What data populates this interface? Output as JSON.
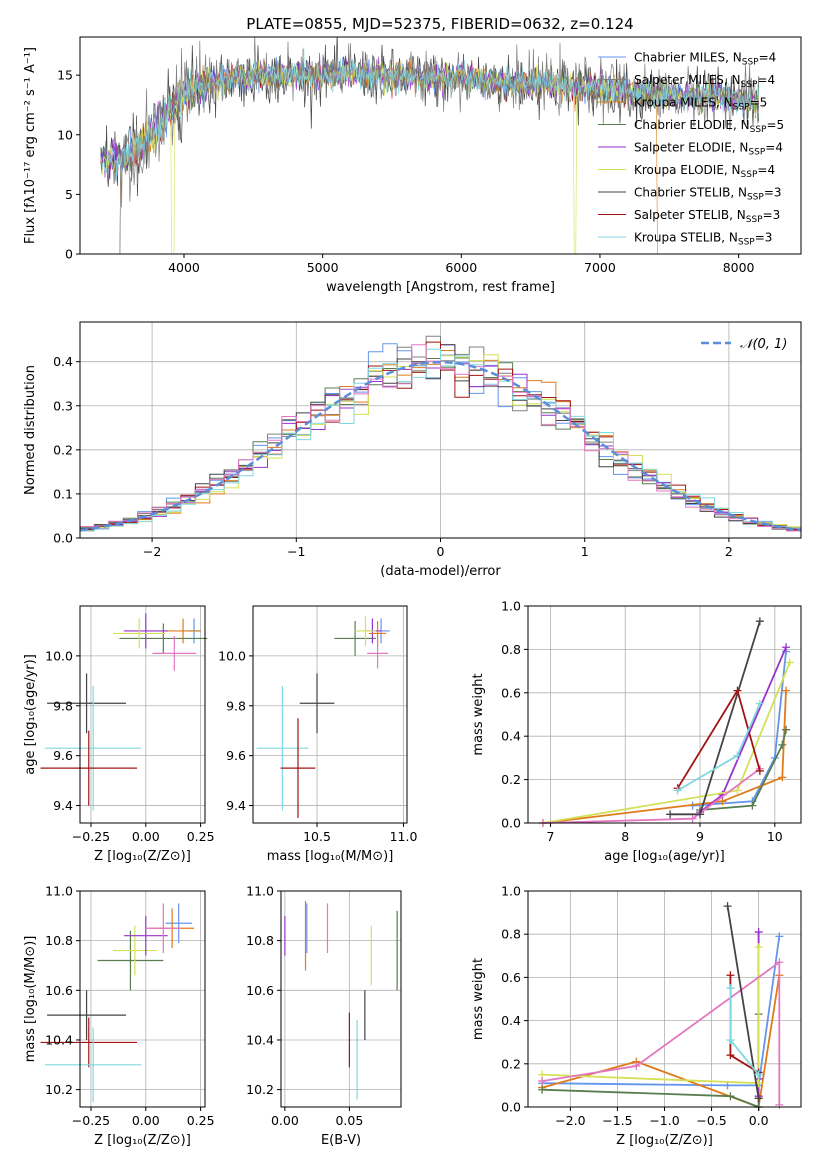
{
  "figure_title": "PLATE=0855, MJD=52375, FIBERID=0632, z=0.124",
  "palette": [
    "#1f77b4",
    "#ff7f0e",
    "#2ca02c",
    "#d62728",
    "#9467bd",
    "#8c564b",
    "#e377c2",
    "#7f7f7f",
    "#bcbd22",
    "#17becf"
  ],
  "legend_spectrum": [
    {
      "text": "Chabrier MILES, N",
      "sub": "SSP",
      "tail": "=4",
      "color": "#6495ed"
    },
    {
      "text": "Salpeter MILES, N",
      "sub": "SSP",
      "tail": "=4",
      "color": "#808080"
    },
    {
      "text": "Kroupa MILES, N",
      "sub": "SSP",
      "tail": "=5",
      "color": "#e07b1a"
    },
    {
      "text": "Chabrier ELODIE, N",
      "sub": "SSP",
      "tail": "=5",
      "color": "#5a7d50"
    },
    {
      "text": "Salpeter ELODIE, N",
      "sub": "SSP",
      "tail": "=4",
      "color": "#9932cc"
    },
    {
      "text": "Kroupa ELODIE, N",
      "sub": "SSP",
      "tail": "=4",
      "color": "#d4e157"
    },
    {
      "text": "Chabrier STELIB, N",
      "sub": "SSP",
      "tail": "=3",
      "color": "#444444"
    },
    {
      "text": "Salpeter STELIB, N",
      "sub": "SSP",
      "tail": "=3",
      "color": "#a01515"
    },
    {
      "text": "Kroupa STELIB, N",
      "sub": "SSP",
      "tail": "=3",
      "color": "#80d8e0"
    }
  ],
  "chart_data": [
    {
      "id": "spectrum",
      "type": "line",
      "title": "PLATE=0855, MJD=52375, FIBERID=0632, z=0.124",
      "xlabel": "wavelength [Angstrom, rest frame]",
      "ylabel": "Flux [fλ10⁻¹⁷ erg cm⁻² s⁻¹ A⁻¹]",
      "xlim": [
        3250,
        8450
      ],
      "ylim": [
        0,
        18.2
      ],
      "xticks": [
        4000,
        5000,
        6000,
        7000,
        8000
      ],
      "yticks": [
        0,
        5,
        10,
        15
      ],
      "grid": false,
      "legend": "top-right",
      "continuum": {
        "x": [
          3400,
          3600,
          3800,
          4000,
          4200,
          4400,
          4600,
          4800,
          5000,
          5200,
          5400,
          5600,
          5800,
          6000,
          6200,
          6400,
          6600,
          6800,
          7000,
          7200,
          7400,
          7600,
          7800,
          8000,
          8150
        ],
        "y": [
          7.8,
          8.2,
          10.5,
          13.5,
          14.5,
          14.8,
          14.9,
          15.0,
          14.9,
          15.2,
          15.0,
          14.9,
          14.6,
          14.9,
          14.5,
          14.3,
          14.4,
          14.0,
          13.9,
          13.6,
          13.4,
          13.2,
          13.2,
          12.9,
          12.8
        ]
      },
      "drops": [
        {
          "series": "Kroupa MILES",
          "x": 3530
        },
        {
          "series": "Kroupa MILES",
          "x": 7420
        },
        {
          "series": "Kroupa ELODIE",
          "x": 3920
        },
        {
          "series": "Kroupa ELODIE",
          "x": 6820
        },
        {
          "series": "Salpeter MILES",
          "x": 3530
        }
      ]
    },
    {
      "id": "residuals",
      "type": "histogram",
      "xlabel": "(data-model)/error",
      "ylabel": "Normed distribution",
      "xlim": [
        -2.5,
        2.5
      ],
      "ylim": [
        0,
        0.49
      ],
      "xticks": [
        -2,
        -1,
        0,
        1,
        2
      ],
      "yticks": [
        0.0,
        0.1,
        0.2,
        0.3,
        0.4
      ],
      "grid": true,
      "legend": "top-right",
      "reference_label": "𝒩(0, 1)",
      "reference_color": "#5b8dd9",
      "bin_width": 0.1
    },
    {
      "id": "age_vs_Z",
      "type": "scatter",
      "xlabel": "Z [log₁₀(Z/Z⊙)]",
      "ylabel": "age  [log₁₀(age/yr)]",
      "xlim": [
        -0.3,
        0.27
      ],
      "ylim": [
        9.33,
        10.2
      ],
      "xticks": [
        -0.25,
        0.0,
        0.25
      ],
      "yticks": [
        9.4,
        9.6,
        9.8,
        10.0
      ],
      "grid": true,
      "points": [
        {
          "x": -0.27,
          "y": 9.81,
          "xerr": 0.18,
          "yerr": 0.12,
          "color": "#444444"
        },
        {
          "x": -0.24,
          "y": 9.63,
          "xerr": 0.22,
          "yerr": 0.25,
          "color": "#80d8e0"
        },
        {
          "x": -0.26,
          "y": 9.55,
          "xerr": 0.22,
          "yerr": 0.15,
          "color": "#a01515"
        },
        {
          "x": 0.22,
          "y": 10.1,
          "xerr": 0.03,
          "yerr": 0.05,
          "color": "#6495ed"
        },
        {
          "x": 0.17,
          "y": 10.1,
          "xerr": 0.08,
          "yerr": 0.05,
          "color": "#e07b1a"
        },
        {
          "x": 0.08,
          "y": 10.07,
          "xerr": 0.2,
          "yerr": 0.06,
          "color": "#5a7d50"
        },
        {
          "x": 0.0,
          "y": 10.1,
          "xerr": 0.1,
          "yerr": 0.07,
          "color": "#9932cc"
        },
        {
          "x": -0.03,
          "y": 10.09,
          "xerr": 0.12,
          "yerr": 0.06,
          "color": "#d4e157"
        },
        {
          "x": 0.13,
          "y": 10.01,
          "xerr": 0.1,
          "yerr": 0.07,
          "color": "#e377c2"
        }
      ]
    },
    {
      "id": "age_vs_mass",
      "type": "scatter",
      "xlabel": "mass [log₁₀(M/M⊙)]",
      "ylabel": "",
      "xlim": [
        10.13,
        11.02
      ],
      "ylim": [
        9.33,
        10.2
      ],
      "xticks": [
        10.5,
        11.0
      ],
      "yticks": [
        9.4,
        9.6,
        9.8,
        10.0
      ],
      "grid": true,
      "points": [
        {
          "x": 10.3,
          "y": 9.63,
          "xerr": 0.15,
          "yerr": 0.25,
          "color": "#80d8e0"
        },
        {
          "x": 10.39,
          "y": 9.55,
          "xerr": 0.1,
          "yerr": 0.2,
          "color": "#a01515"
        },
        {
          "x": 10.5,
          "y": 9.81,
          "xerr": 0.1,
          "yerr": 0.12,
          "color": "#444444"
        },
        {
          "x": 10.72,
          "y": 10.07,
          "xerr": 0.12,
          "yerr": 0.07,
          "color": "#5a7d50"
        },
        {
          "x": 10.87,
          "y": 10.1,
          "xerr": 0.05,
          "yerr": 0.05,
          "color": "#6495ed"
        },
        {
          "x": 10.82,
          "y": 10.1,
          "xerr": 0.05,
          "yerr": 0.05,
          "color": "#9932cc"
        },
        {
          "x": 10.85,
          "y": 10.09,
          "xerr": 0.05,
          "yerr": 0.05,
          "color": "#e07b1a"
        },
        {
          "x": 10.85,
          "y": 10.01,
          "xerr": 0.06,
          "yerr": 0.06,
          "color": "#e377c2"
        },
        {
          "x": 10.78,
          "y": 10.1,
          "xerr": 0.06,
          "yerr": 0.06,
          "color": "#d4e157"
        }
      ]
    },
    {
      "id": "weights_vs_age",
      "type": "line",
      "xlabel": "age  [log₁₀(age/yr)]",
      "ylabel": "mass weight",
      "xlim": [
        6.7,
        10.35
      ],
      "ylim": [
        0,
        1.0
      ],
      "xticks": [
        7,
        8,
        9,
        10
      ],
      "yticks": [
        0.0,
        0.2,
        0.4,
        0.6,
        0.8,
        1.0
      ],
      "grid": true,
      "series": [
        {
          "color": "#6495ed",
          "x": [
            8.9,
            9.7,
            10.0,
            10.15
          ],
          "y": [
            0.08,
            0.1,
            0.3,
            0.79
          ]
        },
        {
          "color": "#e07b1a",
          "x": [
            6.9,
            9.3,
            10.1,
            10.15
          ],
          "y": [
            0.0,
            0.1,
            0.21,
            0.61
          ]
        },
        {
          "color": "#5a7d50",
          "x": [
            9.0,
            9.7,
            10.1,
            10.15
          ],
          "y": [
            0.06,
            0.08,
            0.36,
            0.43
          ]
        },
        {
          "color": "#9932cc",
          "x": [
            9.0,
            9.3,
            10.15
          ],
          "y": [
            0.05,
            0.13,
            0.81
          ]
        },
        {
          "color": "#d4e157",
          "x": [
            6.9,
            9.5,
            10.2
          ],
          "y": [
            0.0,
            0.15,
            0.74
          ]
        },
        {
          "color": "#e377c2",
          "x": [
            6.9,
            8.9,
            9.8
          ],
          "y": [
            0.0,
            0.02,
            0.25
          ]
        },
        {
          "color": "#444444",
          "x": [
            8.6,
            9.0,
            9.8
          ],
          "y": [
            0.04,
            0.04,
            0.93
          ]
        },
        {
          "color": "#a01515",
          "x": [
            8.7,
            9.5,
            9.8
          ],
          "y": [
            0.16,
            0.61,
            0.24
          ]
        },
        {
          "color": "#80d8e0",
          "x": [
            8.7,
            9.5,
            9.8
          ],
          "y": [
            0.15,
            0.31,
            0.55
          ]
        }
      ]
    },
    {
      "id": "mass_vs_Z",
      "type": "scatter",
      "xlabel": "Z [log₁₀(Z/Z⊙)]",
      "ylabel": "mass [log₁₀(M/M⊙)]",
      "xlim": [
        -0.3,
        0.27
      ],
      "ylim": [
        10.13,
        11.0
      ],
      "xticks": [
        -0.25,
        0.0,
        0.25
      ],
      "yticks": [
        10.2,
        10.4,
        10.6,
        10.8,
        11.0
      ],
      "grid": true,
      "points": [
        {
          "x": -0.27,
          "y": 10.5,
          "xerr": 0.18,
          "yerr": 0.1,
          "color": "#444444"
        },
        {
          "x": -0.26,
          "y": 10.39,
          "xerr": 0.22,
          "yerr": 0.1,
          "color": "#a01515"
        },
        {
          "x": -0.24,
          "y": 10.3,
          "xerr": 0.22,
          "yerr": 0.15,
          "color": "#80d8e0"
        },
        {
          "x": -0.07,
          "y": 10.72,
          "xerr": 0.15,
          "yerr": 0.12,
          "color": "#5a7d50"
        },
        {
          "x": -0.05,
          "y": 10.76,
          "xerr": 0.1,
          "yerr": 0.1,
          "color": "#d4e157"
        },
        {
          "x": 0.0,
          "y": 10.82,
          "xerr": 0.1,
          "yerr": 0.08,
          "color": "#9932cc"
        },
        {
          "x": 0.15,
          "y": 10.87,
          "xerr": 0.06,
          "yerr": 0.08,
          "color": "#6495ed"
        },
        {
          "x": 0.12,
          "y": 10.85,
          "xerr": 0.1,
          "yerr": 0.08,
          "color": "#e07b1a"
        },
        {
          "x": 0.08,
          "y": 10.85,
          "xerr": 0.08,
          "yerr": 0.1,
          "color": "#e377c2"
        }
      ]
    },
    {
      "id": "mass_vs_ebv",
      "type": "errorbar",
      "xlabel": "E(B-V)",
      "ylabel": "",
      "xlim": [
        -0.003,
        0.09
      ],
      "ylim": [
        10.13,
        11.0
      ],
      "xticks": [
        0.0,
        0.05
      ],
      "yticks": [
        10.2,
        10.4,
        10.6,
        10.8,
        11.0
      ],
      "grid": true,
      "points": [
        {
          "x": 0.0,
          "y": 10.82,
          "yerr": 0.08,
          "color": "#9932cc"
        },
        {
          "x": 0.016,
          "y": 10.82,
          "yerr": 0.14,
          "color": "#e07b1a"
        },
        {
          "x": 0.017,
          "y": 10.85,
          "yerr": 0.1,
          "color": "#6495ed"
        },
        {
          "x": 0.033,
          "y": 10.85,
          "yerr": 0.1,
          "color": "#e377c2"
        },
        {
          "x": 0.05,
          "y": 10.4,
          "yerr": 0.11,
          "color": "#a01515"
        },
        {
          "x": 0.056,
          "y": 10.32,
          "yerr": 0.16,
          "color": "#80d8e0"
        },
        {
          "x": 0.062,
          "y": 10.5,
          "yerr": 0.1,
          "color": "#444444"
        },
        {
          "x": 0.067,
          "y": 10.74,
          "yerr": 0.12,
          "color": "#d4e157"
        },
        {
          "x": 0.087,
          "y": 10.76,
          "yerr": 0.16,
          "color": "#5a7d50"
        }
      ]
    },
    {
      "id": "weights_vs_Z",
      "type": "line",
      "xlabel": "Z [log₁₀(Z/Z⊙)]",
      "ylabel": "mass weight",
      "xlim": [
        -2.45,
        0.45
      ],
      "ylim": [
        0,
        1.0
      ],
      "xticks": [
        -2.0,
        -1.5,
        -1.0,
        -0.5,
        0.0
      ],
      "yticks": [
        0.0,
        0.2,
        0.4,
        0.6,
        0.8,
        1.0
      ],
      "grid": true,
      "series": [
        {
          "color": "#6495ed",
          "x": [
            -2.3,
            -0.33,
            0.0,
            0.22
          ],
          "y": [
            0.11,
            0.1,
            0.1,
            0.79
          ]
        },
        {
          "color": "#e07b1a",
          "x": [
            -2.3,
            -1.3,
            0.0,
            0.22
          ],
          "y": [
            0.09,
            0.21,
            0.0,
            0.61
          ]
        },
        {
          "color": "#5a7d50",
          "x": [
            -2.3,
            -0.3,
            0.0,
            0.0
          ],
          "y": [
            0.08,
            0.05,
            0.0,
            0.43
          ]
        },
        {
          "color": "#9932cc",
          "x": [
            0.0,
            0.0,
            0.0
          ],
          "y": [
            0.05,
            0.13,
            0.81
          ]
        },
        {
          "color": "#d4e157",
          "x": [
            -2.3,
            0.0,
            0.0
          ],
          "y": [
            0.15,
            0.11,
            0.74
          ]
        },
        {
          "color": "#e377c2",
          "x": [
            -2.3,
            -1.3,
            0.22,
            0.22
          ],
          "y": [
            0.12,
            0.19,
            0.67,
            0.01
          ]
        },
        {
          "color": "#444444",
          "x": [
            -0.33,
            0.0,
            0.0
          ],
          "y": [
            0.93,
            0.04,
            0.04
          ]
        },
        {
          "color": "#a01515",
          "x": [
            -0.3,
            -0.3,
            0.0
          ],
          "y": [
            0.61,
            0.24,
            0.16
          ]
        },
        {
          "color": "#80d8e0",
          "x": [
            -0.3,
            -0.3,
            0.0
          ],
          "y": [
            0.55,
            0.31,
            0.15
          ]
        }
      ]
    }
  ]
}
